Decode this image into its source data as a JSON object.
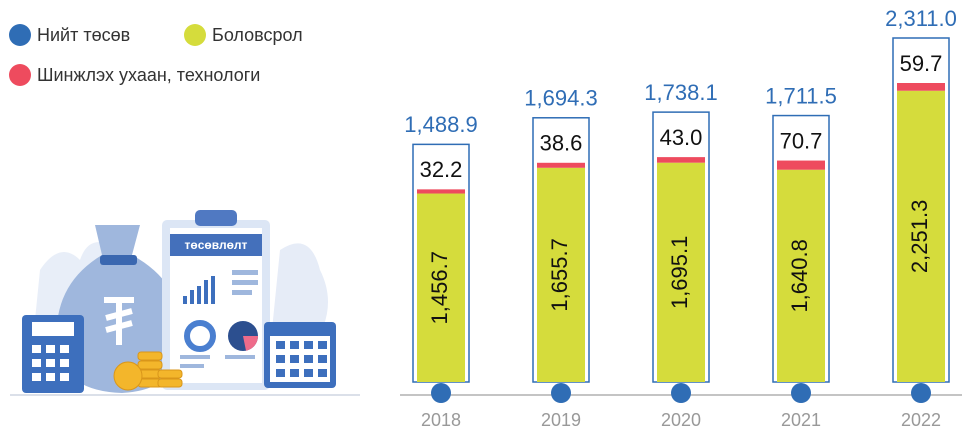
{
  "chart_data": {
    "type": "bar",
    "stacked": true,
    "categories": [
      "2018",
      "2019",
      "2020",
      "2021",
      "2022"
    ],
    "annotation": "төсөвлөлт",
    "series": [
      {
        "name": "Нийт төсөв",
        "color": "#2f6db5",
        "values": [
          1488.9,
          1694.3,
          1738.1,
          1711.5,
          2311.0
        ],
        "value_labels": [
          "1,488.9",
          "1,694.3",
          "1,738.1",
          "1,711.5",
          "2,311.0"
        ]
      },
      {
        "name": "Боловсрол",
        "color": "#d5dc3c",
        "values": [
          1456.7,
          1655.7,
          1695.1,
          1640.8,
          2251.3
        ],
        "value_labels": [
          "1,456.7",
          "1,655.7",
          "1,695.1",
          "1,640.8",
          "2,251.3"
        ]
      },
      {
        "name": "Шинжлэх ухаан, технологи",
        "color": "#ee4b5e",
        "values": [
          32.2,
          38.6,
          43.0,
          70.7,
          59.7
        ],
        "value_labels": [
          "32.2",
          "38.6",
          "43.0",
          "70.7",
          "59.7"
        ]
      }
    ]
  }
}
